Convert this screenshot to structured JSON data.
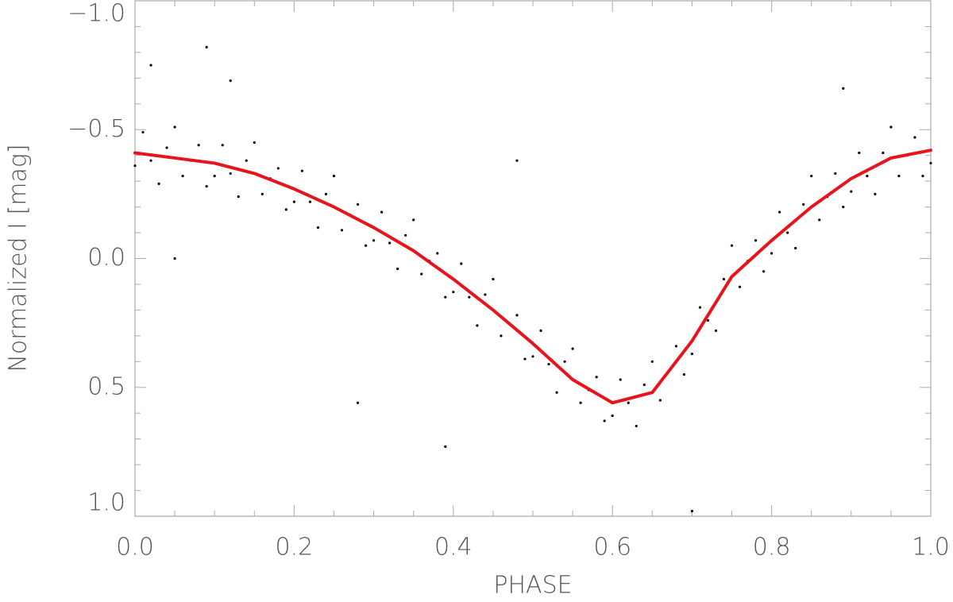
{
  "chart_data": {
    "type": "scatter",
    "x_label": "PHASE",
    "y_label": "Normalized I [mag]",
    "xlim": [
      0,
      1
    ],
    "ylim": [
      1,
      -1
    ],
    "xticks": [
      {
        "value": 0,
        "label": "0.0"
      },
      0.2,
      0.4,
      0.6,
      0.8,
      {
        "value": 1,
        "label": "1.0"
      }
    ],
    "yticks": [
      {
        "value": 1,
        "label": "1.0"
      },
      0.5,
      {
        "value": 0,
        "label": "0.0"
      },
      {
        "value": -0.5,
        "label": "−0.5"
      },
      {
        "value": -1,
        "label": "−1.0"
      }
    ],
    "xminorticks": [
      0.05,
      0.1,
      0.15,
      0.25,
      0.3,
      0.35,
      0.45,
      0.5,
      0.55,
      0.65,
      0.7,
      0.75,
      0.85,
      0.9,
      0.95
    ],
    "yminorticks": [
      0.9,
      0.8,
      0.7,
      0.6,
      0.4,
      0.3,
      0.2,
      0.1,
      -0.1,
      -0.2,
      -0.3,
      -0.4,
      -0.6,
      -0.7,
      -0.8,
      -0.9
    ],
    "frame_color": "#aaaaaa",
    "series": [
      {
        "type": "scatter",
        "color": "#000000",
        "x": [
          0.0,
          0.01,
          0.02,
          0.03,
          0.04,
          0.05,
          0.06,
          0.07,
          0.08,
          0.09,
          0.1,
          0.11,
          0.12,
          0.13,
          0.14,
          0.15,
          0.16,
          0.17,
          0.18,
          0.19,
          0.2,
          0.21,
          0.22,
          0.23,
          0.24,
          0.25,
          0.26,
          0.27,
          0.28,
          0.29,
          0.3,
          0.31,
          0.32,
          0.33,
          0.34,
          0.35,
          0.36,
          0.37,
          0.38,
          0.39,
          0.4,
          0.41,
          0.42,
          0.43,
          0.44,
          0.45,
          0.46,
          0.47,
          0.48,
          0.49,
          0.5,
          0.51,
          0.52,
          0.53,
          0.54,
          0.55,
          0.56,
          0.57,
          0.58,
          0.59,
          0.6,
          0.61,
          0.62,
          0.63,
          0.64,
          0.65,
          0.66,
          0.67,
          0.68,
          0.69,
          0.7,
          0.71,
          0.72,
          0.73,
          0.74,
          0.75,
          0.76,
          0.77,
          0.78,
          0.79,
          0.8,
          0.81,
          0.82,
          0.83,
          0.84,
          0.85,
          0.86,
          0.87,
          0.88,
          0.89,
          0.9,
          0.91,
          0.92,
          0.93,
          0.94,
          0.95,
          0.96,
          0.97,
          0.98,
          0.99,
          1.0,
          0.09,
          0.02,
          0.12,
          0.7,
          0.48,
          0.28,
          0.39,
          0.89,
          0.05
        ],
        "values": [
          -0.36,
          -0.49,
          -0.38,
          -0.29,
          -0.43,
          -0.51,
          -0.32,
          -0.38,
          -0.44,
          -0.28,
          -0.32,
          -0.44,
          -0.33,
          -0.24,
          -0.38,
          -0.45,
          -0.25,
          -0.31,
          -0.35,
          -0.19,
          -0.22,
          -0.34,
          -0.22,
          -0.12,
          -0.25,
          -0.32,
          -0.11,
          -0.17,
          -0.21,
          -0.05,
          -0.07,
          -0.18,
          -0.06,
          0.04,
          -0.09,
          -0.15,
          0.06,
          0.01,
          -0.02,
          0.15,
          0.13,
          0.02,
          0.15,
          0.26,
          0.14,
          0.08,
          0.3,
          0.25,
          0.22,
          0.39,
          0.38,
          0.28,
          0.41,
          0.52,
          0.4,
          0.35,
          0.56,
          0.51,
          0.46,
          0.63,
          0.61,
          0.47,
          0.56,
          0.65,
          0.49,
          0.4,
          0.55,
          0.44,
          0.34,
          0.45,
          0.37,
          0.19,
          0.24,
          0.28,
          0.08,
          -0.05,
          0.11,
          0.01,
          -0.07,
          0.05,
          -0.02,
          -0.18,
          -0.1,
          -0.04,
          -0.21,
          -0.32,
          -0.15,
          -0.24,
          -0.33,
          -0.2,
          -0.26,
          -0.41,
          -0.32,
          -0.25,
          -0.41,
          -0.51,
          -0.32,
          -0.4,
          -0.47,
          -0.32,
          -0.37,
          -0.82,
          -0.75,
          -0.69,
          0.98,
          -0.38,
          0.56,
          0.73,
          -0.66,
          0.0
        ]
      },
      {
        "type": "line",
        "color": "#e8141b",
        "x": [
          0,
          0.05,
          0.1,
          0.15,
          0.2,
          0.25,
          0.3,
          0.35,
          0.4,
          0.45,
          0.5,
          0.55,
          0.6,
          0.65,
          0.7,
          0.75,
          0.8,
          0.85,
          0.9,
          0.95,
          1
        ],
        "values": [
          -0.41,
          -0.39,
          -0.37,
          -0.33,
          -0.27,
          -0.2,
          -0.12,
          -0.03,
          0.08,
          0.2,
          0.33,
          0.47,
          0.56,
          0.52,
          0.32,
          0.07,
          -0.07,
          -0.2,
          -0.31,
          -0.39,
          -0.42
        ]
      }
    ]
  }
}
